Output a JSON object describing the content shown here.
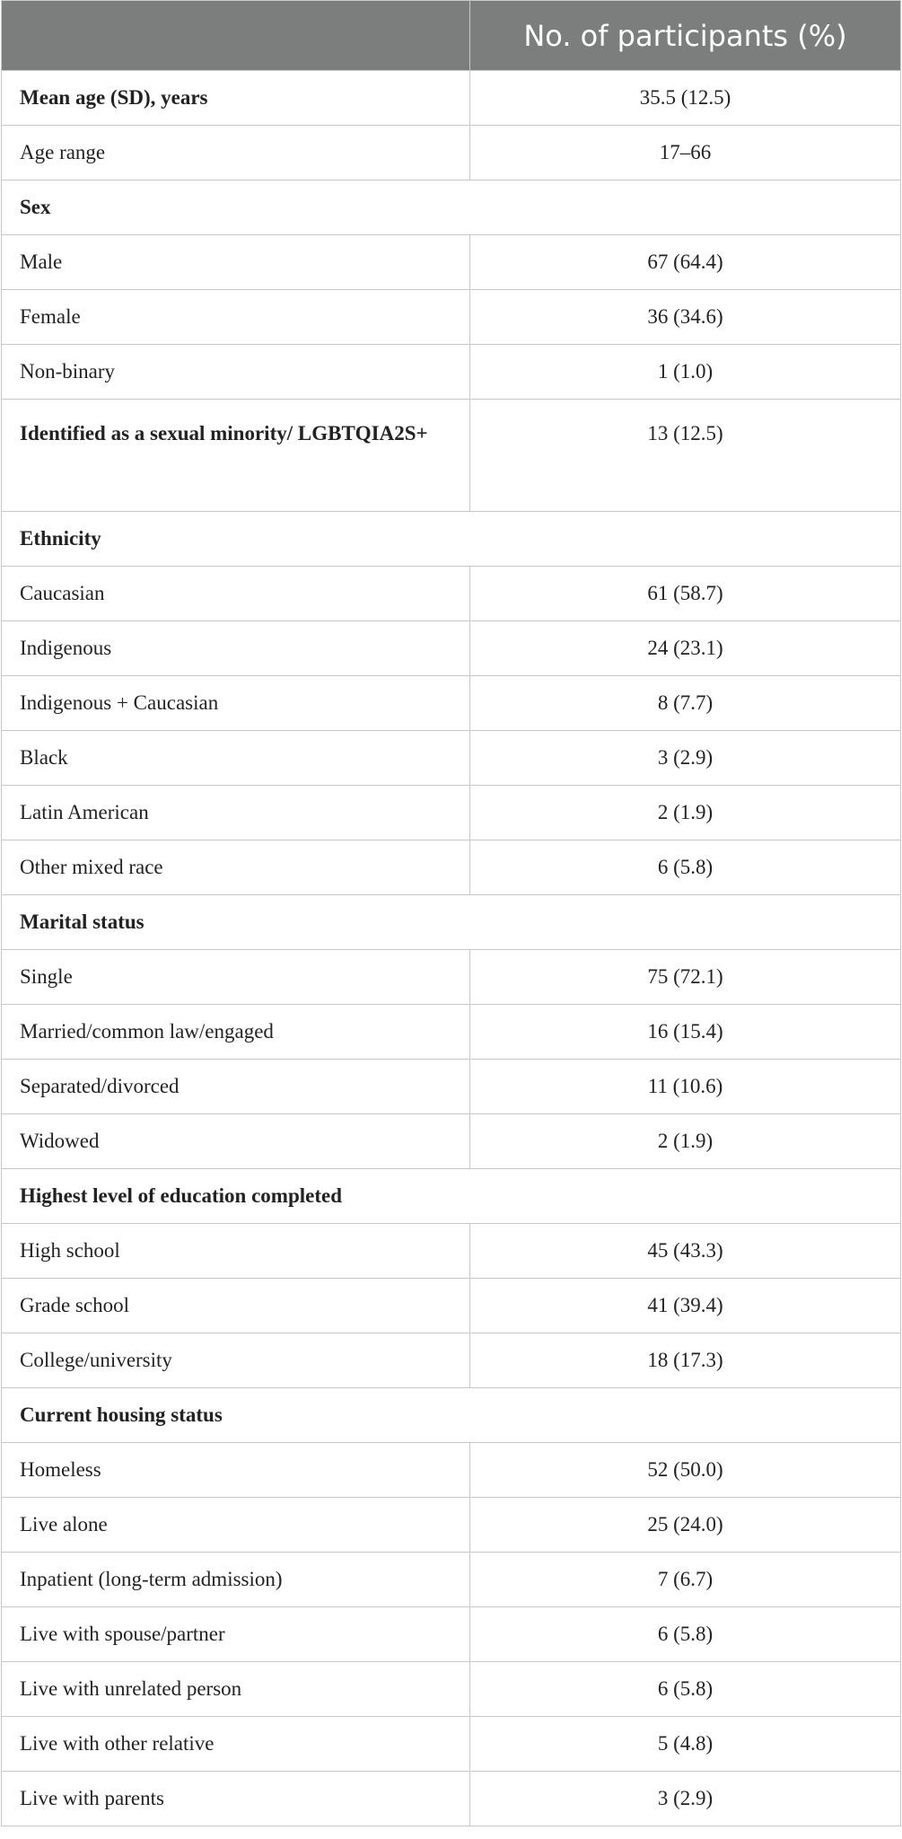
{
  "table": {
    "column_header": "No. of participants (%)",
    "rows": [
      {
        "label": "Mean age (SD), years",
        "value": "35.5 (12.5)",
        "bold": true
      },
      {
        "label": "Age range",
        "value": "17–66"
      },
      {
        "label": "Sex",
        "bold": true
      },
      {
        "label": "Male",
        "value": "67 (64.4)"
      },
      {
        "label": "Female",
        "value": "36 (34.6)"
      },
      {
        "label": "Non-binary",
        "value": "1 (1.0)"
      },
      {
        "label": "Identified as a sexual minority/ LGBTQIA2S+",
        "value": "13 (12.5)",
        "bold": true
      },
      {
        "label": "Ethnicity",
        "bold": true
      },
      {
        "label": "Caucasian",
        "value": "61 (58.7)"
      },
      {
        "label": "Indigenous",
        "value": "24 (23.1)"
      },
      {
        "label": "Indigenous + Caucasian",
        "value": "8 (7.7)"
      },
      {
        "label": "Black",
        "value": "3 (2.9)"
      },
      {
        "label": "Latin American",
        "value": "2 (1.9)"
      },
      {
        "label": "Other mixed race",
        "value": "6 (5.8)"
      },
      {
        "label": "Marital status",
        "bold": true
      },
      {
        "label": "Single",
        "value": "75 (72.1)"
      },
      {
        "label": "Married/common law/engaged",
        "value": "16 (15.4)"
      },
      {
        "label": "Separated/divorced",
        "value": "11 (10.6)"
      },
      {
        "label": "Widowed",
        "value": "2 (1.9)"
      },
      {
        "label": "Highest level of education completed",
        "bold": true
      },
      {
        "label": "High school",
        "value": "45 (43.3)"
      },
      {
        "label": "Grade school",
        "value": "41 (39.4)"
      },
      {
        "label": "College/university",
        "value": "18 (17.3)"
      },
      {
        "label": "Current housing status",
        "bold": true
      },
      {
        "label": "Homeless",
        "value": "52 (50.0)"
      },
      {
        "label": "Live alone",
        "value": "25 (24.0)"
      },
      {
        "label": "Inpatient (long-term admission)",
        "value": "7 (6.7)"
      },
      {
        "label": "Live with spouse/partner",
        "value": "6 (5.8)"
      },
      {
        "label": "Live with unrelated person",
        "value": "6 (5.8)"
      },
      {
        "label": "Live with other relative",
        "value": "5 (4.8)"
      },
      {
        "label": "Live with parents",
        "value": "3 (2.9)"
      }
    ]
  }
}
